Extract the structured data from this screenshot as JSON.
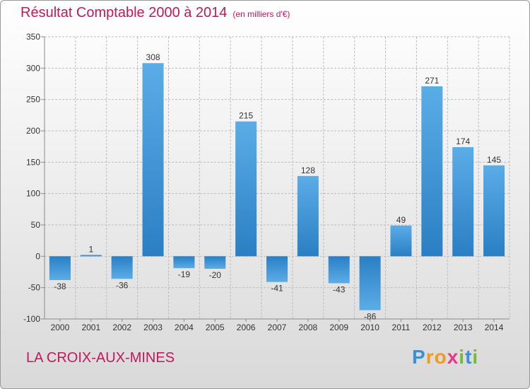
{
  "header": {
    "title": "Résultat Comptable 2000 à 2014",
    "subtitle": "(en milliers d'€)"
  },
  "footer": {
    "commune": "LA CROIX-AUX-MINES",
    "brand": "Proxiti"
  },
  "colors": {
    "title": "#c2185b",
    "bar_light": "#5aade6",
    "bar_dark": "#2a7fc4",
    "grid": "#bdbdbd",
    "axis": "#8a8a8a",
    "text": "#333333"
  },
  "chart_data": {
    "type": "bar",
    "title": "Résultat Comptable 2000 à 2014",
    "subtitle": "(en milliers d'€)",
    "xlabel": "",
    "ylabel": "",
    "categories": [
      "2000",
      "2001",
      "2002",
      "2003",
      "2004",
      "2005",
      "2006",
      "2007",
      "2008",
      "2009",
      "2010",
      "2011",
      "2012",
      "2013",
      "2014"
    ],
    "values": [
      -38,
      1,
      -36,
      308,
      -19,
      -20,
      215,
      -41,
      128,
      -43,
      -86,
      49,
      271,
      174,
      145
    ],
    "ylim": [
      -100,
      350
    ],
    "yticks": [
      -100,
      -50,
      0,
      50,
      100,
      150,
      200,
      250,
      300,
      350
    ],
    "grid": true,
    "legend": "none"
  }
}
